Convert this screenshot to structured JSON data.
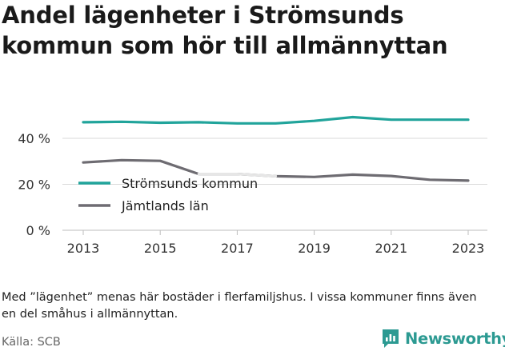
{
  "title": "Andel lägenheter i Strömsunds kommun som hör till allmännyttan",
  "note": "Med ”lägenhet” menas här bostäder i flerfamiljshus. I vissa kommuner finns även en del småhus i allmännyttan.",
  "source": "Källa: SCB",
  "brand": {
    "name": "Newsworthy",
    "logo_icon": "newsworthy-chart-logo-icon",
    "color": "#2c9a92"
  },
  "colors": {
    "strömsund": "#21a49b",
    "jamtland": "#6e6c72",
    "grid": "#d9d9d9",
    "highlight_gap": "#e6e6e6"
  },
  "chart_data": {
    "type": "line",
    "title": "Andel lägenheter i Strömsunds kommun som hör till allmännyttan",
    "xlabel": "",
    "ylabel": "",
    "x": [
      2013,
      2014,
      2015,
      2016,
      2017,
      2018,
      2019,
      2020,
      2021,
      2022,
      2023
    ],
    "xticks": [
      "2013",
      "2015",
      "2017",
      "2019",
      "2021",
      "2023"
    ],
    "yticks": [
      "0 %",
      "20 %",
      "40 %"
    ],
    "ylim": [
      0,
      60
    ],
    "grid": "horizontal",
    "legend": "inside-left",
    "series": [
      {
        "name": "Strömsunds kommun",
        "color": "#21a49b",
        "values": [
          47.0,
          47.2,
          46.8,
          47.0,
          46.5,
          46.5,
          47.6,
          49.2,
          48.1,
          48.1,
          48.1
        ]
      },
      {
        "name": "Jämtlands län",
        "color": "#6e6c72",
        "values": [
          29.5,
          30.5,
          30.2,
          24.5,
          24.5,
          23.5,
          23.2,
          24.2,
          23.6,
          22.0,
          21.6
        ]
      }
    ]
  }
}
